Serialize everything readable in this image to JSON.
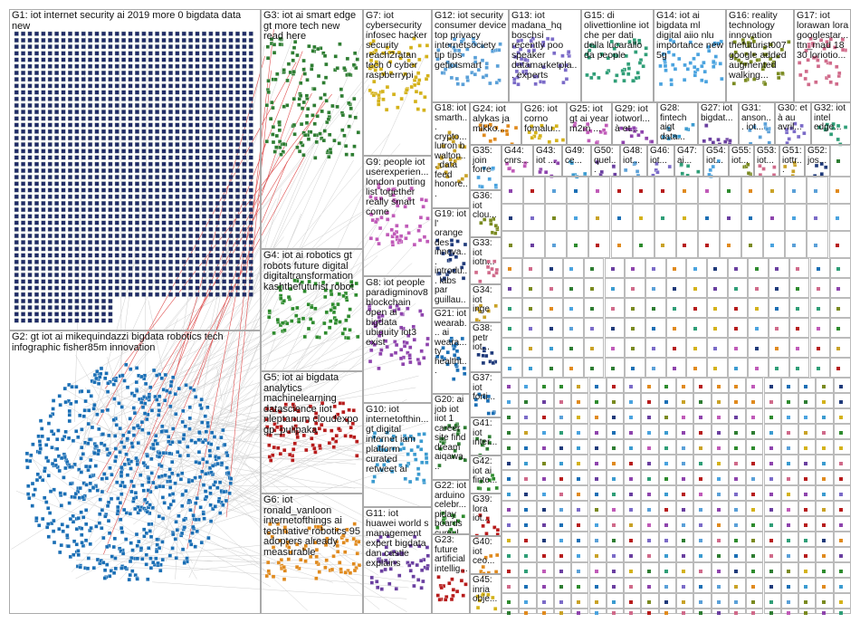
{
  "groups": [
    {
      "label": "G1: iot internet security ai 2019 more 0 bigdata data new"
    },
    {
      "label": "G2: gt iot ai mikequindazzi bigdata robotics tech infographic fisher85m innovation"
    },
    {
      "label": "G3: iot ai smart edge gt more tech new read here"
    },
    {
      "label": "G4: iot ai robotics gt robots future digital digitaltransformation kashthefuturist robot"
    },
    {
      "label": "G5: iot ai bigdata analytics machinelearning datascience iiot nleptanum cloudexpo gp_pulipaka"
    },
    {
      "label": "G6: iot ronald_vanloon internetofthings ai technative robotics 95 adopters already measurable"
    },
    {
      "label": "G7: iot cybersecurity infosec hacker security reach2ratan tech 0 cyber raspberrypi"
    },
    {
      "label": "G9: people iot userexperien... london putting list together really smart come"
    },
    {
      "label": "G8: iot people paradigminov8 blockchain open ai bigdata ubiquity iot3 exist"
    },
    {
      "label": "G10: iot internetofthin... gt digital internet iam platform curated retweet ai"
    },
    {
      "label": "G11: iot huawei world s management expert bigdata dan castle explains"
    },
    {
      "label": "G12: iot security consumer device top privacy internetsociety tip tips getiotsmart"
    },
    {
      "label": "G13: iot madana_hq boschsi recently poo speaker datamarketpla... experts"
    },
    {
      "label": "G15: di olivettionline iot che per dati della lucarallo da people"
    },
    {
      "label": "G14: iot ai bigdata ml digital aiio nlu importance new 5g"
    },
    {
      "label": "G16: reality technology innovation thefuturist007 google added augmented walking..."
    },
    {
      "label": "G17: iot lorawan lora googlestar... ttn_mad 18 30 loriotio..."
    },
    {
      "label": "G18: iot smarth... crypto... lutron b walton... data feed honore..."
    },
    {
      "label": "G19: iot l' orange des innova... introdu... labs par guillau..."
    },
    {
      "label": "G21: iot wearab... ai weara... ty healtht..."
    },
    {
      "label": "G20: ai job iot iiot 1 career site find dream aiqawa..."
    },
    {
      "label": "G22: iot arduino celebr... piday boards cumul..."
    },
    {
      "label": "G23: future artificial intellig..."
    },
    {
      "label": "G24: iot alykas ja mikko..."
    },
    {
      "label": "G26: iot corno fomalu..."
    },
    {
      "label": "G25: iot gt ai year m2m ..."
    },
    {
      "label": "G29: iot iotworl... à et..."
    },
    {
      "label": "G28: fintech aigt data..."
    },
    {
      "label": "G27: iot bigdat..."
    },
    {
      "label": "G31: anson... iot..."
    },
    {
      "label": "G30: et à au avril..."
    },
    {
      "label": "G32: iot intel edge..."
    },
    {
      "label": "G35: join forre"
    },
    {
      "label": "G36: iot clou..."
    },
    {
      "label": "G33: iot iotn..."
    },
    {
      "label": "G34: iot inge"
    },
    {
      "label": "G38: petr iot..."
    },
    {
      "label": "G37: iot forti..."
    },
    {
      "label": "G41: iot inter..."
    },
    {
      "label": "G42: iot ai finte..."
    },
    {
      "label": "G39: lora iot..."
    },
    {
      "label": "G40: iot ceo..."
    },
    {
      "label": "G45: inria obje..."
    },
    {
      "label": "G44: cnrs..."
    },
    {
      "label": "G43: iot ..."
    },
    {
      "label": "G49: ce..."
    },
    {
      "label": "G50: quel..."
    },
    {
      "label": "G48: iot..."
    },
    {
      "label": "G46: iot..."
    },
    {
      "label": "G47: ai..."
    },
    {
      "label": "G54: iot..."
    },
    {
      "label": "G55: iot..."
    },
    {
      "label": "G53: iot..."
    },
    {
      "label": "G51: iottr..."
    },
    {
      "label": "G52: jos..."
    }
  ]
}
